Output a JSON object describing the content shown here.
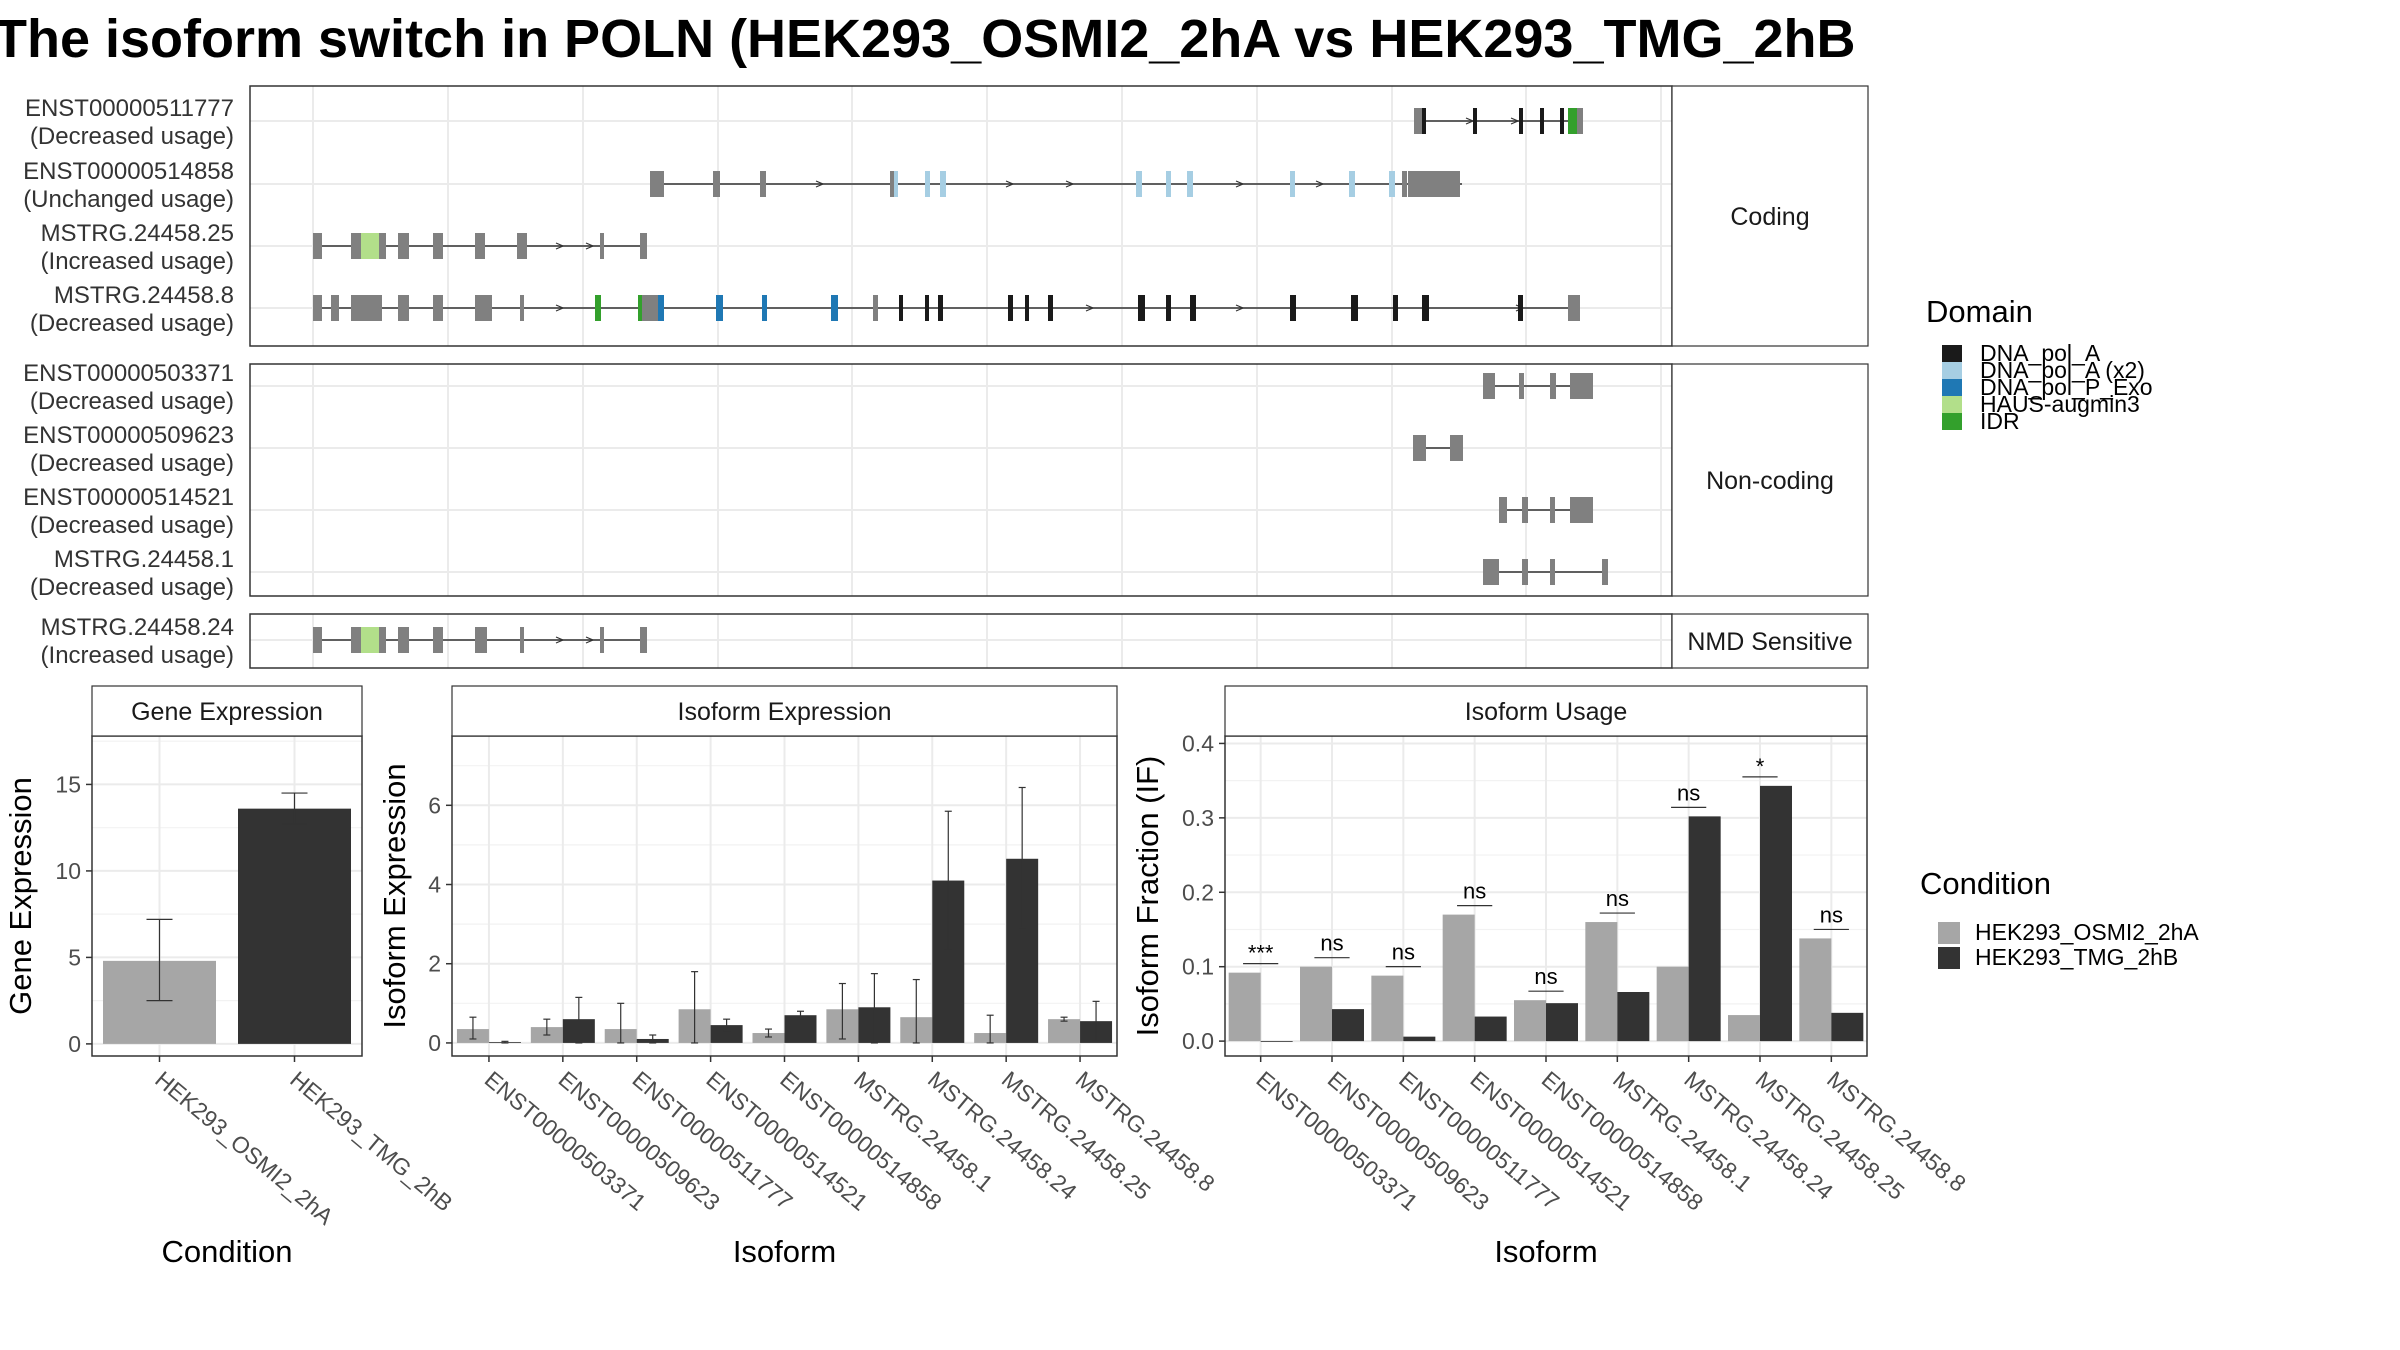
{
  "title": "The isoform switch in POLN (HEK293_OSMI2_2hA vs HEK293_TMG_2hB",
  "colors": {
    "exon": "#808080",
    "DNA_pol_A": "#1a1a1a",
    "DNA_pol_A (x2)": "#a6cee3",
    "DNA_pol_P_Exo": "#1f78b4",
    "HAUS-augmin3": "#b2df8a",
    "IDR": "#33a02c",
    "HEK293_OSMI2_2hA": "#a6a6a6",
    "HEK293_TMG_2hB": "#333333"
  },
  "legends": {
    "domain": {
      "title": "Domain",
      "items": [
        "DNA_pol_A",
        "DNA_pol_A (x2)",
        "DNA_pol_P_Exo",
        "HAUS-augmin3",
        "IDR"
      ]
    },
    "condition": {
      "title": "Condition",
      "items": [
        "HEK293_OSMI2_2hA",
        "HEK293_TMG_2hB"
      ]
    }
  },
  "structure_panels": {
    "groups": [
      {
        "label": "Coding",
        "tracks": [
          {
            "name": "ENST00000511777",
            "status": "(Decreased usage)"
          },
          {
            "name": "ENST00000514858",
            "status": "(Unchanged usage)"
          },
          {
            "name": "MSTRG.24458.25",
            "status": "(Increased usage)"
          },
          {
            "name": "MSTRG.24458.8",
            "status": "(Decreased usage)"
          }
        ]
      },
      {
        "label": "Non-coding",
        "tracks": [
          {
            "name": "ENST00000503371",
            "status": "(Decreased usage)"
          },
          {
            "name": "ENST00000509623",
            "status": "(Decreased usage)"
          },
          {
            "name": "ENST00000514521",
            "status": "(Decreased usage)"
          },
          {
            "name": "MSTRG.24458.1",
            "status": "(Decreased usage)"
          }
        ]
      },
      {
        "label": "NMD Sensitive",
        "tracks": [
          {
            "name": "MSTRG.24458.24",
            "status": "(Increased usage)"
          }
        ]
      }
    ]
  },
  "chart_data": [
    {
      "type": "bar",
      "title": "Gene Expression",
      "xlabel": "Condition",
      "ylabel": "Gene Expression",
      "categories": [
        "HEK293_OSMI2_2hA",
        "HEK293_TMG_2hB"
      ],
      "values": [
        4.8,
        13.6
      ],
      "error_low": [
        2.5,
        12.7
      ],
      "error_high": [
        7.2,
        14.5
      ],
      "ylim": [
        -0.7,
        17.8
      ],
      "yticks": [
        0,
        5,
        10,
        15
      ]
    },
    {
      "type": "bar",
      "title": "Isoform Expression",
      "xlabel": "Isoform",
      "ylabel": "Isoform Expression",
      "categories": [
        "ENST00000503371",
        "ENST00000509623",
        "ENST00000511777",
        "ENST00000514521",
        "ENST00000514858",
        "MSTRG.24458.1",
        "MSTRG.24458.24",
        "MSTRG.24458.25",
        "MSTRG.24458.8"
      ],
      "series": [
        {
          "name": "HEK293_OSMI2_2hA",
          "values": [
            0.35,
            0.4,
            0.35,
            0.85,
            0.25,
            0.85,
            0.65,
            0.25,
            0.6
          ],
          "error_low": [
            0.1,
            0.2,
            0.0,
            0.0,
            0.15,
            0.1,
            0.0,
            0.0,
            0.55
          ],
          "error_high": [
            0.65,
            0.6,
            1.0,
            1.8,
            0.35,
            1.5,
            1.6,
            0.7,
            0.65
          ]
        },
        {
          "name": "HEK293_TMG_2hB",
          "values": [
            0.02,
            0.6,
            0.1,
            0.45,
            0.7,
            0.9,
            4.1,
            4.65,
            0.55
          ],
          "error_low": [
            0.0,
            0.0,
            0.0,
            0.3,
            0.6,
            0.0,
            2.35,
            2.9,
            0.05
          ],
          "error_high": [
            0.04,
            1.15,
            0.2,
            0.6,
            0.8,
            1.75,
            5.85,
            6.45,
            1.05
          ]
        }
      ],
      "ylim": [
        -0.33,
        7.75
      ],
      "yticks": [
        0,
        2,
        4,
        6
      ]
    },
    {
      "type": "bar",
      "title": "Isoform Usage",
      "xlabel": "Isoform",
      "ylabel": "Isoform Fraction (IF)",
      "categories": [
        "ENST00000503371",
        "ENST00000509623",
        "ENST00000511777",
        "ENST00000514521",
        "ENST00000514858",
        "MSTRG.24458.1",
        "MSTRG.24458.24",
        "MSTRG.24458.25",
        "MSTRG.24458.8"
      ],
      "series": [
        {
          "name": "HEK293_OSMI2_2hA",
          "values": [
            0.092,
            0.1,
            0.088,
            0.17,
            0.055,
            0.16,
            0.1,
            0.035,
            0.138
          ]
        },
        {
          "name": "HEK293_TMG_2hB",
          "values": [
            0.0,
            0.043,
            0.006,
            0.033,
            0.051,
            0.066,
            0.302,
            0.343,
            0.038
          ]
        }
      ],
      "significance": [
        "***",
        "ns",
        "ns",
        "ns",
        "ns",
        "ns",
        "ns",
        "*",
        "ns"
      ],
      "ylim": [
        -0.02,
        0.41
      ],
      "yticks": [
        0.0,
        0.1,
        0.2,
        0.3,
        0.4
      ]
    }
  ]
}
